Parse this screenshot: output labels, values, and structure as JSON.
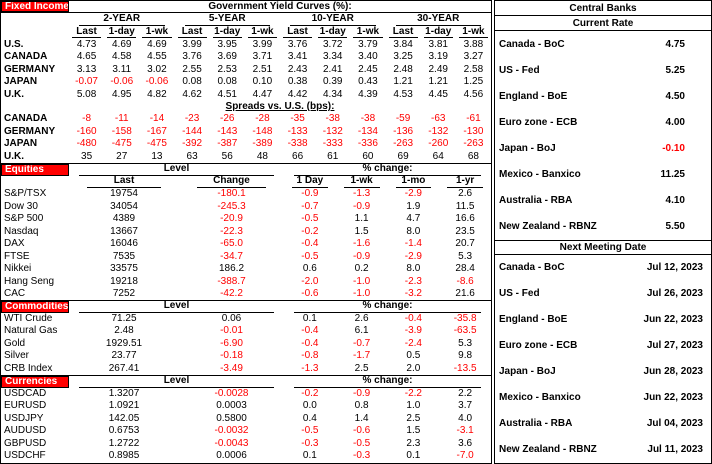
{
  "colors": {
    "accent_red": "#FF0000",
    "text": "#000000",
    "background": "#FFFFFF"
  },
  "fixed_income": {
    "section_label": "Fixed Income",
    "title": "Government Yield Curves (%):",
    "tenor_headers": [
      "2-YEAR",
      "5-YEAR",
      "10-YEAR",
      "30-YEAR"
    ],
    "col_headers": [
      "Last",
      "1-day",
      "1-wk",
      "Last",
      "1-day",
      "1-wk",
      "Last",
      "1-day",
      "1-wk",
      "Last",
      "1-day",
      "1-wk"
    ],
    "yield_rows": [
      {
        "label": "U.S.",
        "values": [
          "4.73",
          "4.69",
          "4.69",
          "3.99",
          "3.95",
          "3.99",
          "3.76",
          "3.72",
          "3.79",
          "3.84",
          "3.81",
          "3.88"
        ]
      },
      {
        "label": "CANADA",
        "values": [
          "4.65",
          "4.58",
          "4.55",
          "3.76",
          "3.69",
          "3.71",
          "3.41",
          "3.34",
          "3.40",
          "3.25",
          "3.19",
          "3.27"
        ]
      },
      {
        "label": "GERMANY",
        "values": [
          "3.13",
          "3.11",
          "3.02",
          "2.55",
          "2.53",
          "2.51",
          "2.43",
          "2.41",
          "2.45",
          "2.48",
          "2.49",
          "2.58"
        ]
      },
      {
        "label": "JAPAN",
        "values": [
          "-0.07",
          "-0.06",
          "-0.06",
          "0.08",
          "0.08",
          "0.10",
          "0.38",
          "0.39",
          "0.43",
          "1.21",
          "1.21",
          "1.25"
        ]
      },
      {
        "label": "U.K.",
        "values": [
          "5.08",
          "4.95",
          "4.82",
          "4.62",
          "4.51",
          "4.47",
          "4.42",
          "4.34",
          "4.39",
          "4.53",
          "4.45",
          "4.56"
        ]
      }
    ],
    "spreads_title": "Spreads vs. U.S. (bps):",
    "spread_rows": [
      {
        "label": "CANADA",
        "values": [
          "-8",
          "-11",
          "-14",
          "-23",
          "-26",
          "-28",
          "-35",
          "-38",
          "-38",
          "-59",
          "-63",
          "-61"
        ]
      },
      {
        "label": "GERMANY",
        "values": [
          "-160",
          "-158",
          "-167",
          "-144",
          "-143",
          "-148",
          "-133",
          "-132",
          "-134",
          "-136",
          "-132",
          "-130"
        ]
      },
      {
        "label": "JAPAN",
        "values": [
          "-480",
          "-475",
          "-475",
          "-392",
          "-387",
          "-389",
          "-338",
          "-333",
          "-336",
          "-263",
          "-260",
          "-263"
        ]
      },
      {
        "label": "U.K.",
        "values": [
          "35",
          "27",
          "13",
          "63",
          "56",
          "48",
          "66",
          "61",
          "60",
          "69",
          "64",
          "68"
        ]
      }
    ]
  },
  "equities": {
    "section_label": "Equities",
    "level_header": "Level",
    "pct_header": "% change:",
    "col_headers": [
      "Last",
      "Change",
      "1 Day",
      "1-wk",
      "1-mo",
      "1-yr"
    ],
    "rows": [
      {
        "label": "S&P/TSX",
        "values": [
          "19754",
          "-180.1",
          "-0.9",
          "-1.3",
          "-2.9",
          "2.6"
        ]
      },
      {
        "label": "Dow 30",
        "values": [
          "34054",
          "-245.3",
          "-0.7",
          "-0.9",
          "1.9",
          "11.5"
        ]
      },
      {
        "label": "S&P 500",
        "values": [
          "4389",
          "-20.9",
          "-0.5",
          "1.1",
          "4.7",
          "16.6"
        ]
      },
      {
        "label": "Nasdaq",
        "values": [
          "13667",
          "-22.3",
          "-0.2",
          "1.5",
          "8.0",
          "23.5"
        ]
      },
      {
        "label": "DAX",
        "values": [
          "16046",
          "-65.0",
          "-0.4",
          "-1.6",
          "-1.4",
          "20.7"
        ]
      },
      {
        "label": "FTSE",
        "values": [
          "7535",
          "-34.7",
          "-0.5",
          "-0.9",
          "-2.9",
          "5.3"
        ]
      },
      {
        "label": "Nikkei",
        "values": [
          "33575",
          "186.2",
          "0.6",
          "0.2",
          "8.0",
          "28.4"
        ]
      },
      {
        "label": "Hang Seng",
        "values": [
          "19218",
          "-388.7",
          "-2.0",
          "-1.0",
          "-2.3",
          "-8.6"
        ]
      },
      {
        "label": "CAC",
        "values": [
          "7252",
          "-42.2",
          "-0.6",
          "-1.0",
          "-3.2",
          "21.6"
        ]
      }
    ]
  },
  "commodities": {
    "section_label": "Commodities",
    "level_header": "Level",
    "pct_header": "% change:",
    "rows": [
      {
        "label": "WTI Crude",
        "values": [
          "71.25",
          "0.06",
          "0.1",
          "2.6",
          "-0.4",
          "-35.8"
        ]
      },
      {
        "label": "Natural Gas",
        "values": [
          "2.48",
          "-0.01",
          "-0.4",
          "6.1",
          "-3.9",
          "-63.5"
        ]
      },
      {
        "label": "Gold",
        "values": [
          "1929.51",
          "-6.90",
          "-0.4",
          "-0.7",
          "-2.4",
          "5.3"
        ]
      },
      {
        "label": "Silver",
        "values": [
          "23.77",
          "-0.18",
          "-0.8",
          "-1.7",
          "0.5",
          "9.8"
        ]
      },
      {
        "label": "CRB Index",
        "values": [
          "267.41",
          "-3.49",
          "-1.3",
          "2.5",
          "2.0",
          "-13.5"
        ]
      }
    ]
  },
  "currencies": {
    "section_label": "Currencies",
    "level_header": "Level",
    "pct_header": "% change:",
    "rows": [
      {
        "label": "USDCAD",
        "values": [
          "1.3207",
          "-0.0028",
          "-0.2",
          "-0.9",
          "-2.2",
          "2.2"
        ]
      },
      {
        "label": "EURUSD",
        "values": [
          "1.0921",
          "0.0003",
          "0.0",
          "0.8",
          "1.0",
          "3.7"
        ]
      },
      {
        "label": "USDJPY",
        "values": [
          "142.05",
          "0.5800",
          "0.4",
          "1.4",
          "2.5",
          "4.0"
        ]
      },
      {
        "label": "AUDUSD",
        "values": [
          "0.6753",
          "-0.0032",
          "-0.5",
          "-0.6",
          "1.5",
          "-3.1"
        ]
      },
      {
        "label": "GBPUSD",
        "values": [
          "1.2722",
          "-0.0043",
          "-0.3",
          "-0.5",
          "2.3",
          "3.6"
        ]
      },
      {
        "label": "USDCHF",
        "values": [
          "0.8985",
          "0.0006",
          "0.1",
          "-0.3",
          "0.1",
          "-7.0"
        ]
      }
    ]
  },
  "central_banks": {
    "title": "Central Banks",
    "current_rate_header": "Current Rate",
    "rates": [
      {
        "label": "Canada - BoC",
        "value": "4.75"
      },
      {
        "label": "US - Fed",
        "value": "5.25"
      },
      {
        "label": "England - BoE",
        "value": "4.50"
      },
      {
        "label": "Euro zone - ECB",
        "value": "4.00"
      },
      {
        "label": "Japan - BoJ",
        "value": "-0.10"
      },
      {
        "label": "Mexico - Banxico",
        "value": "11.25"
      },
      {
        "label": "Australia - RBA",
        "value": "4.10"
      },
      {
        "label": "New Zealand - RBNZ",
        "value": "5.50"
      }
    ],
    "meeting_header": "Next Meeting Date",
    "meetings": [
      {
        "label": "Canada - BoC",
        "value": "Jul 12, 2023"
      },
      {
        "label": "US - Fed",
        "value": "Jul 26, 2023"
      },
      {
        "label": "England - BoE",
        "value": "Jun 22, 2023"
      },
      {
        "label": "Euro zone - ECB",
        "value": "Jul 27, 2023"
      },
      {
        "label": "Japan - BoJ",
        "value": "Jun 28, 2023"
      },
      {
        "label": "Mexico - Banxico",
        "value": "Jun 22, 2023"
      },
      {
        "label": "Australia - RBA",
        "value": "Jul 04, 2023"
      },
      {
        "label": "New Zealand - RBNZ",
        "value": "Jul 11, 2023"
      }
    ]
  }
}
